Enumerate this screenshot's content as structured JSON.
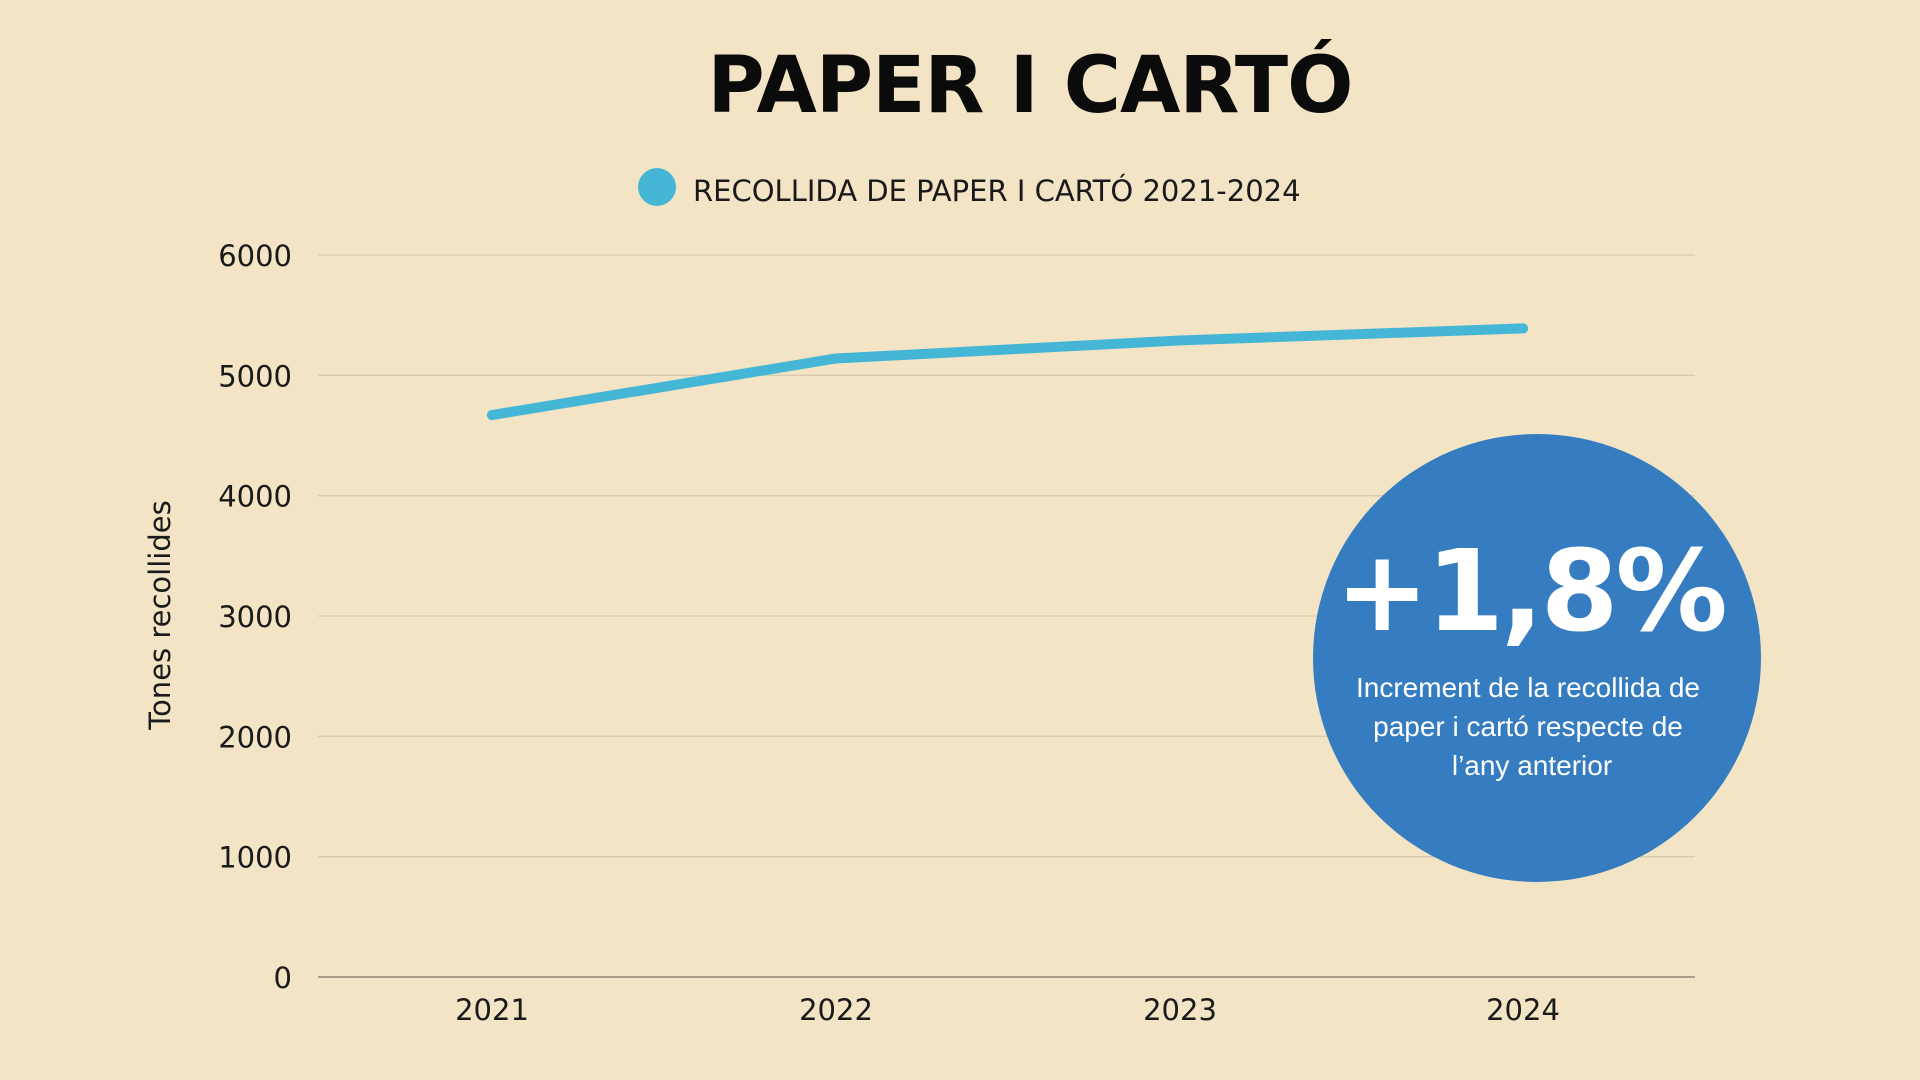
{
  "colors": {
    "background": "#f2e4c5",
    "series_line": "#45b6d6",
    "gridline": "#d7cbb0",
    "badge_fill": "#357dc0",
    "badge_text": "#ffffff"
  },
  "chart_data": {
    "type": "line",
    "title": "PAPER I CARTÓ",
    "xlabel": "",
    "ylabel": "Tones recollides",
    "categories": [
      "2021",
      "2022",
      "2023",
      "2024"
    ],
    "yticks": [
      "0",
      "1000",
      "2000",
      "3000",
      "4000",
      "5000",
      "6000"
    ],
    "ylim": [
      0,
      6000
    ],
    "grid": true,
    "legend_position": "top-center",
    "series": [
      {
        "name": "RECOLLIDA DE PAPER I CARTÓ 2021-2024",
        "values": [
          4670,
          5140,
          5290,
          5390
        ]
      }
    ],
    "annotation": {
      "value": "+1,8%",
      "description_lines": [
        "Increment de la recollida de",
        "paper i cartó respecte de",
        "l’any anterior"
      ]
    }
  }
}
